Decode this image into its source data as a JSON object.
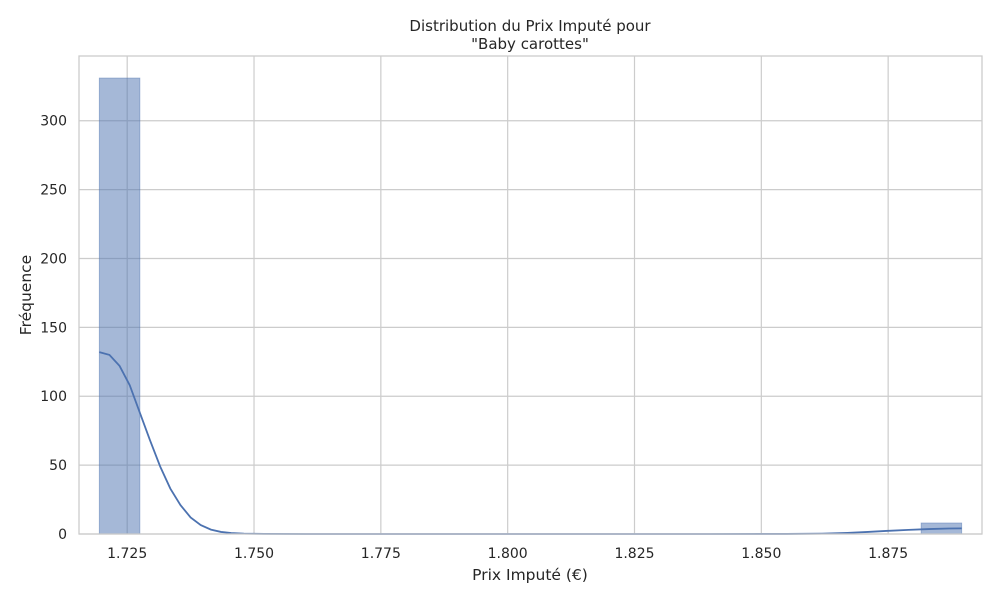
{
  "chart_data": {
    "type": "bar",
    "subtype": "histogram-with-kde",
    "title_line1": "Distribution du Prix Imputé pour",
    "title_line2": "\"Baby carottes\"",
    "xlabel": "Prix Imputé (€)",
    "ylabel": "Fréquence",
    "xlim": [
      1.7155,
      1.8935
    ],
    "ylim": [
      0,
      347
    ],
    "xticks": [
      "1.725",
      "1.750",
      "1.775",
      "1.800",
      "1.825",
      "1.850",
      "1.875"
    ],
    "xtick_values": [
      1.725,
      1.75,
      1.775,
      1.8,
      1.825,
      1.85,
      1.875
    ],
    "yticks": [
      "0",
      "50",
      "100",
      "150",
      "200",
      "250",
      "300"
    ],
    "ytick_values": [
      0,
      50,
      100,
      150,
      200,
      250,
      300
    ],
    "grid": true,
    "color": "#4c72b0",
    "bins": [
      {
        "x0": 1.7195,
        "x1": 1.7275,
        "count": 331
      },
      {
        "x0": 1.7275,
        "x1": 1.7355,
        "count": 0
      },
      {
        "x0": 1.7355,
        "x1": 1.7435,
        "count": 0
      },
      {
        "x0": 1.7435,
        "x1": 1.7515,
        "count": 0
      },
      {
        "x0": 1.7515,
        "x1": 1.7595,
        "count": 0
      },
      {
        "x0": 1.7595,
        "x1": 1.7675,
        "count": 0
      },
      {
        "x0": 1.7675,
        "x1": 1.7755,
        "count": 0
      },
      {
        "x0": 1.7755,
        "x1": 1.7835,
        "count": 0
      },
      {
        "x0": 1.7835,
        "x1": 1.7915,
        "count": 0
      },
      {
        "x0": 1.7915,
        "x1": 1.7995,
        "count": 0
      },
      {
        "x0": 1.7995,
        "x1": 1.8075,
        "count": 0
      },
      {
        "x0": 1.8075,
        "x1": 1.8155,
        "count": 0
      },
      {
        "x0": 1.8155,
        "x1": 1.8235,
        "count": 0
      },
      {
        "x0": 1.8235,
        "x1": 1.8315,
        "count": 0
      },
      {
        "x0": 1.8315,
        "x1": 1.8395,
        "count": 0
      },
      {
        "x0": 1.8395,
        "x1": 1.8475,
        "count": 0
      },
      {
        "x0": 1.8475,
        "x1": 1.8555,
        "count": 0
      },
      {
        "x0": 1.8555,
        "x1": 1.8635,
        "count": 0
      },
      {
        "x0": 1.8635,
        "x1": 1.8715,
        "count": 0
      },
      {
        "x0": 1.8715,
        "x1": 1.8815,
        "count": 0
      },
      {
        "x0": 1.8815,
        "x1": 1.8895,
        "count": 8
      }
    ],
    "kde": [
      {
        "x": 1.7195,
        "y": 132
      },
      {
        "x": 1.7215,
        "y": 130
      },
      {
        "x": 1.7235,
        "y": 122
      },
      {
        "x": 1.7255,
        "y": 108
      },
      {
        "x": 1.7275,
        "y": 88
      },
      {
        "x": 1.7295,
        "y": 68
      },
      {
        "x": 1.7315,
        "y": 49
      },
      {
        "x": 1.7335,
        "y": 33
      },
      {
        "x": 1.7355,
        "y": 21
      },
      {
        "x": 1.7375,
        "y": 12
      },
      {
        "x": 1.7395,
        "y": 6.5
      },
      {
        "x": 1.7415,
        "y": 3.2
      },
      {
        "x": 1.7435,
        "y": 1.5
      },
      {
        "x": 1.7455,
        "y": 0.7
      },
      {
        "x": 1.748,
        "y": 0.3
      },
      {
        "x": 1.752,
        "y": 0.1
      },
      {
        "x": 1.76,
        "y": 0
      },
      {
        "x": 1.8,
        "y": 0
      },
      {
        "x": 1.84,
        "y": 0
      },
      {
        "x": 1.855,
        "y": 0.05
      },
      {
        "x": 1.862,
        "y": 0.3
      },
      {
        "x": 1.867,
        "y": 0.8
      },
      {
        "x": 1.871,
        "y": 1.5
      },
      {
        "x": 1.875,
        "y": 2.3
      },
      {
        "x": 1.879,
        "y": 3.0
      },
      {
        "x": 1.883,
        "y": 3.6
      },
      {
        "x": 1.887,
        "y": 4.0
      },
      {
        "x": 1.8895,
        "y": 4.1
      }
    ]
  }
}
